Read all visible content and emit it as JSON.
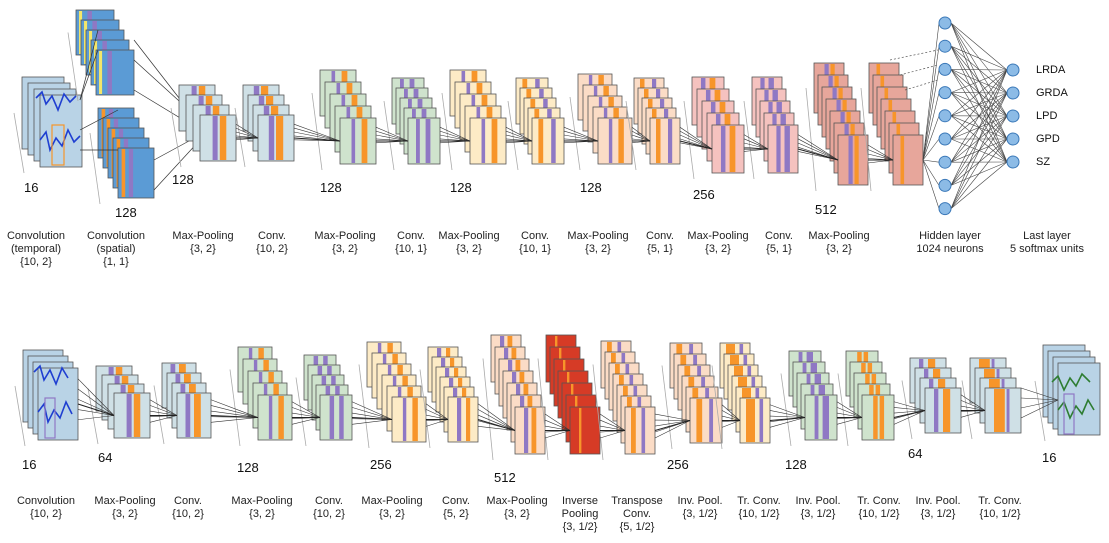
{
  "encoder": {
    "stages": [
      {
        "name": "Convolution\n(temporal)",
        "params": "{10, 2}"
      },
      {
        "name": "Convolution\n(spatial)",
        "params": "{1, 1}"
      },
      {
        "name": "Max-Pooling",
        "params": "{3, 2}"
      },
      {
        "name": "Conv.",
        "params": "{10, 2}"
      },
      {
        "name": "Max-Pooling",
        "params": "{3, 2}"
      },
      {
        "name": "Conv.",
        "params": "{10, 1}"
      },
      {
        "name": "Max-Pooling",
        "params": "{3, 2}"
      },
      {
        "name": "Conv.",
        "params": "{10, 1}"
      },
      {
        "name": "Max-Pooling",
        "params": "{3, 2}"
      },
      {
        "name": "Conv.",
        "params": "{5, 1}"
      },
      {
        "name": "Max-Pooling",
        "params": "{3, 2}"
      },
      {
        "name": "Conv.",
        "params": "{5, 1}"
      },
      {
        "name": "Max-Pooling",
        "params": "{3, 2}"
      },
      {
        "name": "Hidden layer",
        "params": "1024 neurons"
      },
      {
        "name": "Last layer",
        "params": "5 softmax units"
      }
    ],
    "channel_counts": [
      "16",
      "128",
      "128",
      "128",
      "128",
      "128",
      "256",
      "512"
    ],
    "outputs": [
      "LRDA",
      "GRDA",
      "LPD",
      "GPD",
      "SZ"
    ]
  },
  "decoder": {
    "stages": [
      {
        "name": "Convolution",
        "params": "{10, 2}"
      },
      {
        "name": "Max-Pooling",
        "params": "{3, 2}"
      },
      {
        "name": "Conv.",
        "params": "{10, 2}"
      },
      {
        "name": "Max-Pooling",
        "params": "{3, 2}"
      },
      {
        "name": "Conv.",
        "params": "{10, 2}"
      },
      {
        "name": "Max-Pooling",
        "params": "{3, 2}"
      },
      {
        "name": "Conv.",
        "params": "{5, 2}"
      },
      {
        "name": "Max-Pooling",
        "params": "{3, 2}"
      },
      {
        "name": "Inverse\nPooling",
        "params": "{3, 1/2}"
      },
      {
        "name": "Transpose\nConv.",
        "params": "{5, 1/2}"
      },
      {
        "name": "Inv. Pool.",
        "params": "{3, 1/2}"
      },
      {
        "name": "Tr. Conv.",
        "params": "{10, 1/2}"
      },
      {
        "name": "Inv. Pool.",
        "params": "{3, 1/2}"
      },
      {
        "name": "Tr. Conv.",
        "params": "{10, 1/2}"
      },
      {
        "name": "Inv. Pool.",
        "params": "{3, 1/2}"
      },
      {
        "name": "Tr. Conv.",
        "params": "{10, 1/2}"
      }
    ],
    "channel_counts": [
      "16",
      "64",
      "128",
      "256",
      "512",
      "256",
      "128",
      "64",
      "16"
    ]
  },
  "colors": {
    "input_blue": "#b9d3e6",
    "green": "#cfe3cd",
    "yellow": "#fdebc6",
    "peach": "#fbdcc6",
    "pink": "#f5c2bf",
    "salmon": "#e7a69b",
    "red": "#d63b26",
    "purple": "#8f78c4",
    "orange": "#f7952a",
    "neuron": "#8cbbe6",
    "signal": "#1f3fd1",
    "signal_green": "#2e7d32"
  }
}
